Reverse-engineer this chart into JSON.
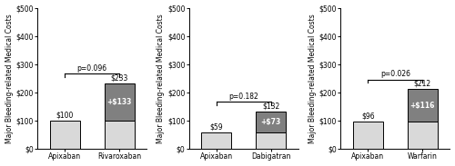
{
  "panels": [
    {
      "apixaban_val": 100,
      "comparator_val": 233,
      "comparator_base": 100,
      "comparator_diff": 133,
      "apixaban_label": "$100",
      "comparator_total_label": "$233",
      "comparator_diff_label": "+$133",
      "comparator_name": "Rivaroxaban",
      "p_value": "p=0.096",
      "ylim": 500
    },
    {
      "apixaban_val": 59,
      "comparator_val": 132,
      "comparator_base": 59,
      "comparator_diff": 73,
      "apixaban_label": "$59",
      "comparator_total_label": "$132",
      "comparator_diff_label": "+$73",
      "comparator_name": "Dabigatran",
      "p_value": "p=0.182",
      "ylim": 500
    },
    {
      "apixaban_val": 96,
      "comparator_val": 212,
      "comparator_base": 96,
      "comparator_diff": 116,
      "apixaban_label": "$96",
      "comparator_total_label": "$212",
      "comparator_diff_label": "+$116",
      "comparator_name": "Warfarin",
      "p_value": "p=0.026",
      "ylim": 500
    }
  ],
  "yticks": [
    0,
    100,
    200,
    300,
    400,
    500
  ],
  "ytick_labels": [
    "$0",
    "$100",
    "$200",
    "$300",
    "$400",
    "$500"
  ],
  "ylabel": "Major Bleeding-related Medical Costs",
  "apixaban_color": "#d9d9d9",
  "comparator_base_color": "#d9d9d9",
  "comparator_diff_color": "#808080",
  "bar_width": 0.55,
  "bar_edge_color": "#000000",
  "bar_edge_width": 0.7,
  "label_fontsize": 5.5,
  "ylabel_fontsize": 5.5,
  "tick_fontsize": 5.5,
  "pvalue_fontsize": 5.5,
  "diff_label_color": "#ffffff",
  "total_label_color": "#000000",
  "apixaban_val_color": "#000000"
}
